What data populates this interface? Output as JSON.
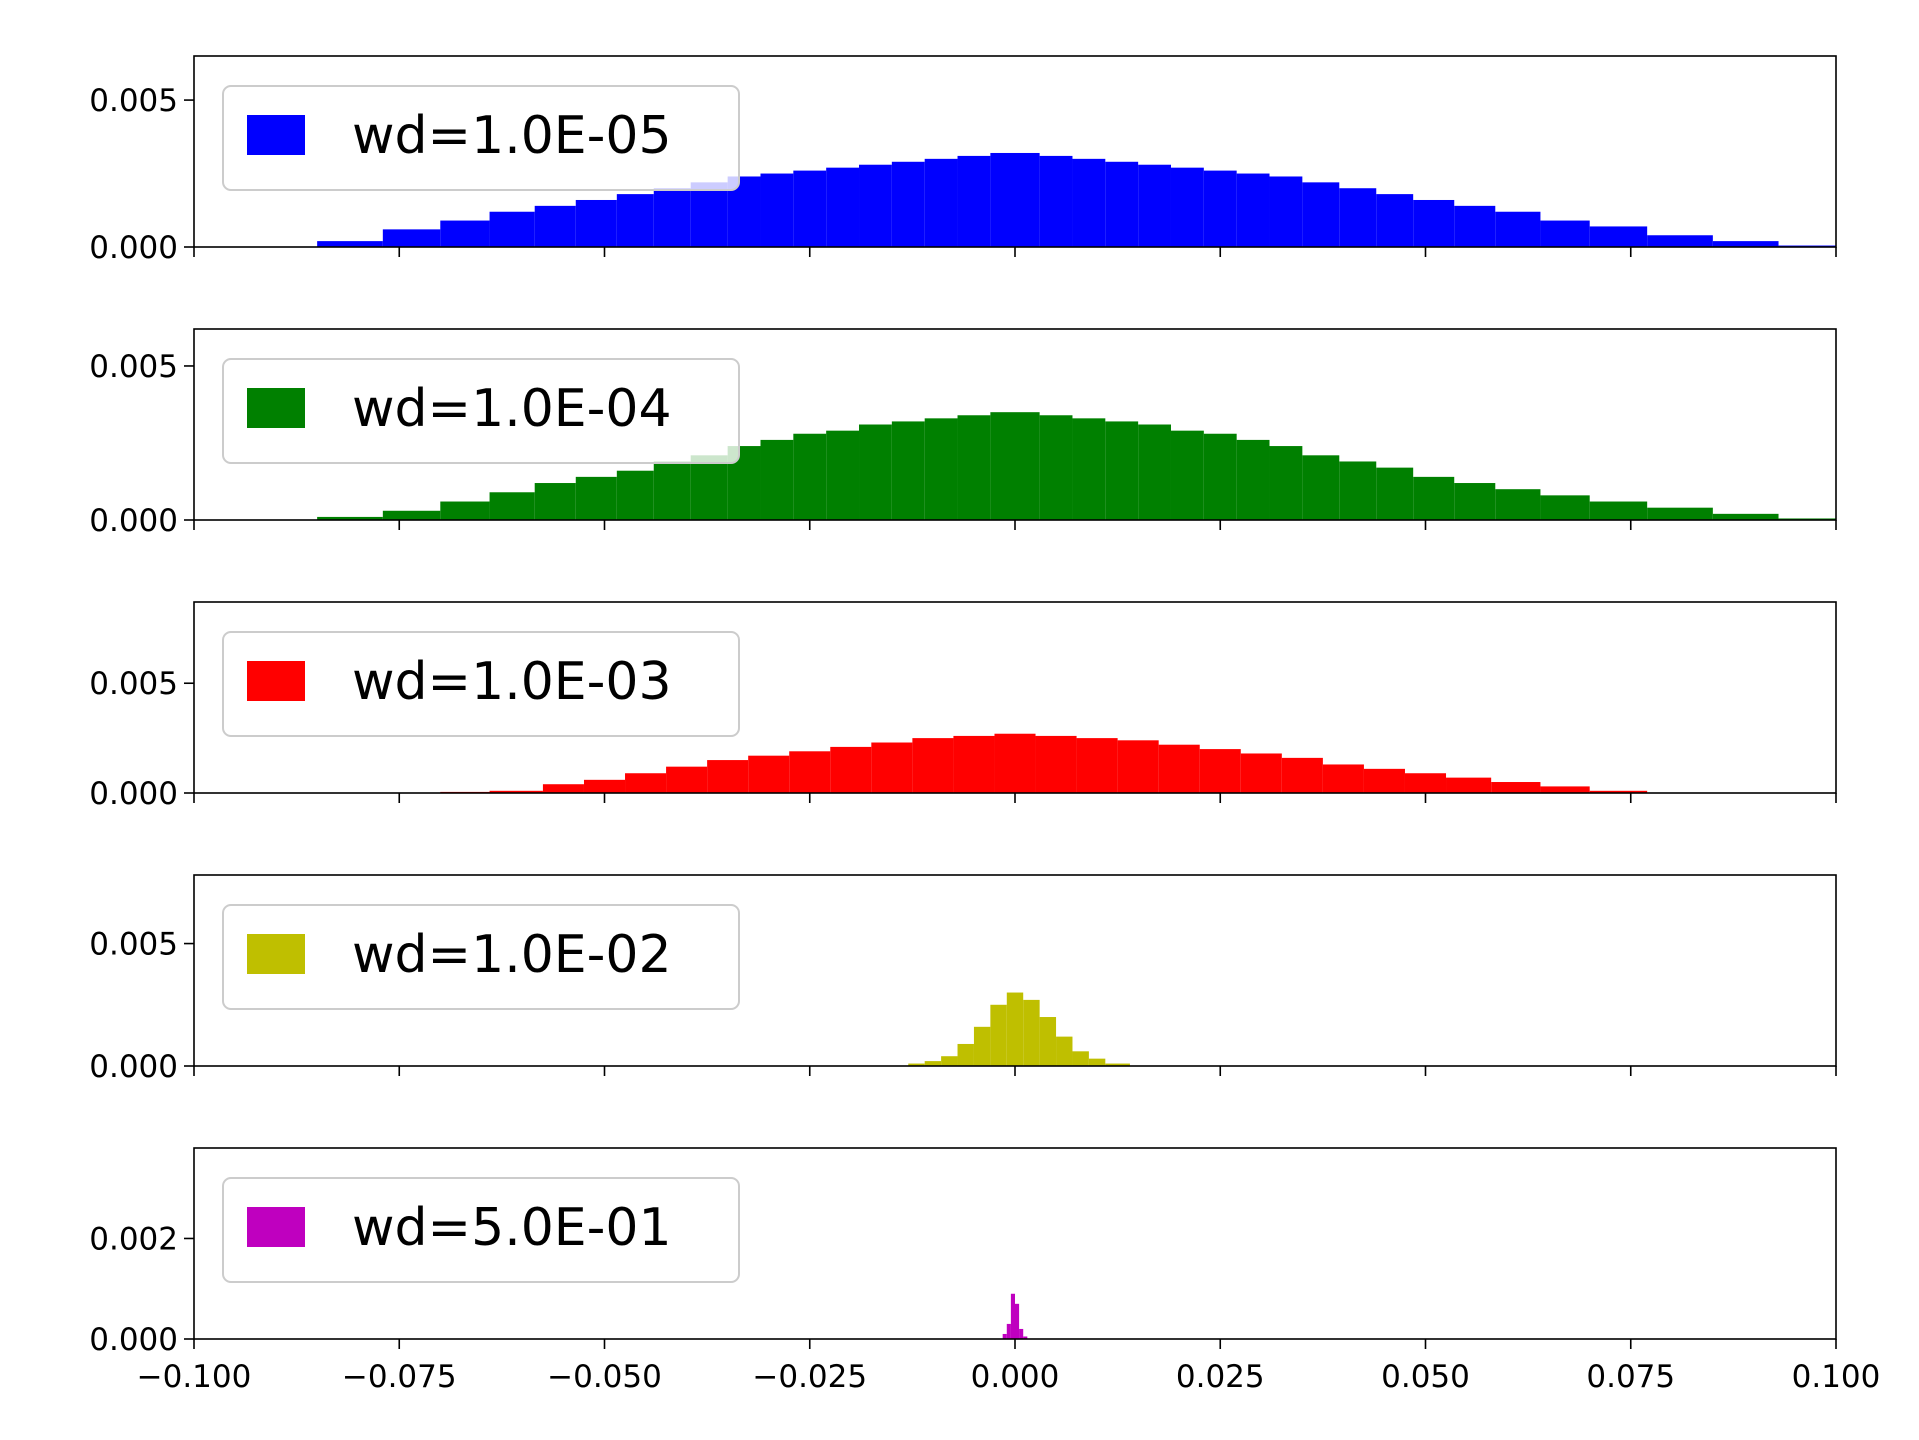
{
  "chart_data": [
    {
      "type": "bar",
      "legend": "wd=1.0E-05",
      "color": "#0000ff",
      "xlim": [
        -0.1,
        0.1
      ],
      "ylim": [
        0,
        0.0065
      ],
      "yticks": [
        0.0,
        0.005
      ],
      "ytick_labels": [
        "0.000",
        "0.005"
      ],
      "xtick_labels": [],
      "bins": [
        {
          "x0": -0.085,
          "x1": -0.077,
          "y": 0.0002
        },
        {
          "x0": -0.077,
          "x1": -0.07,
          "y": 0.0006
        },
        {
          "x0": -0.07,
          "x1": -0.064,
          "y": 0.0009
        },
        {
          "x0": -0.064,
          "x1": -0.0585,
          "y": 0.0012
        },
        {
          "x0": -0.0585,
          "x1": -0.0535,
          "y": 0.0014
        },
        {
          "x0": -0.0535,
          "x1": -0.0485,
          "y": 0.0016
        },
        {
          "x0": -0.0485,
          "x1": -0.044,
          "y": 0.0018
        },
        {
          "x0": -0.044,
          "x1": -0.0395,
          "y": 0.002
        },
        {
          "x0": -0.0395,
          "x1": -0.035,
          "y": 0.0022
        },
        {
          "x0": -0.035,
          "x1": -0.031,
          "y": 0.0024
        },
        {
          "x0": -0.031,
          "x1": -0.027,
          "y": 0.0025
        },
        {
          "x0": -0.027,
          "x1": -0.023,
          "y": 0.0026
        },
        {
          "x0": -0.023,
          "x1": -0.019,
          "y": 0.0027
        },
        {
          "x0": -0.019,
          "x1": -0.015,
          "y": 0.0028
        },
        {
          "x0": -0.015,
          "x1": -0.011,
          "y": 0.0029
        },
        {
          "x0": -0.011,
          "x1": -0.007,
          "y": 0.003
        },
        {
          "x0": -0.007,
          "x1": -0.003,
          "y": 0.0031
        },
        {
          "x0": -0.003,
          "x1": 0.003,
          "y": 0.0032
        },
        {
          "x0": 0.003,
          "x1": 0.007,
          "y": 0.0031
        },
        {
          "x0": 0.007,
          "x1": 0.011,
          "y": 0.003
        },
        {
          "x0": 0.011,
          "x1": 0.015,
          "y": 0.0029
        },
        {
          "x0": 0.015,
          "x1": 0.019,
          "y": 0.0028
        },
        {
          "x0": 0.019,
          "x1": 0.023,
          "y": 0.0027
        },
        {
          "x0": 0.023,
          "x1": 0.027,
          "y": 0.0026
        },
        {
          "x0": 0.027,
          "x1": 0.031,
          "y": 0.0025
        },
        {
          "x0": 0.031,
          "x1": 0.035,
          "y": 0.0024
        },
        {
          "x0": 0.035,
          "x1": 0.0395,
          "y": 0.0022
        },
        {
          "x0": 0.0395,
          "x1": 0.044,
          "y": 0.002
        },
        {
          "x0": 0.044,
          "x1": 0.0485,
          "y": 0.0018
        },
        {
          "x0": 0.0485,
          "x1": 0.0535,
          "y": 0.0016
        },
        {
          "x0": 0.0535,
          "x1": 0.0585,
          "y": 0.0014
        },
        {
          "x0": 0.0585,
          "x1": 0.064,
          "y": 0.0012
        },
        {
          "x0": 0.064,
          "x1": 0.07,
          "y": 0.0009
        },
        {
          "x0": 0.07,
          "x1": 0.077,
          "y": 0.0007
        },
        {
          "x0": 0.077,
          "x1": 0.085,
          "y": 0.0004
        },
        {
          "x0": 0.085,
          "x1": 0.093,
          "y": 0.0002
        },
        {
          "x0": 0.093,
          "x1": 0.1,
          "y": 5e-05
        }
      ]
    },
    {
      "type": "bar",
      "legend": "wd=1.0E-04",
      "color": "#008000",
      "xlim": [
        -0.1,
        0.1
      ],
      "ylim": [
        0,
        0.0062
      ],
      "yticks": [
        0.0,
        0.005
      ],
      "ytick_labels": [
        "0.000",
        "0.005"
      ],
      "xtick_labels": [],
      "bins": [
        {
          "x0": -0.085,
          "x1": -0.077,
          "y": 0.0001
        },
        {
          "x0": -0.077,
          "x1": -0.07,
          "y": 0.0003
        },
        {
          "x0": -0.07,
          "x1": -0.064,
          "y": 0.0006
        },
        {
          "x0": -0.064,
          "x1": -0.0585,
          "y": 0.0009
        },
        {
          "x0": -0.0585,
          "x1": -0.0535,
          "y": 0.0012
        },
        {
          "x0": -0.0535,
          "x1": -0.0485,
          "y": 0.0014
        },
        {
          "x0": -0.0485,
          "x1": -0.044,
          "y": 0.0016
        },
        {
          "x0": -0.044,
          "x1": -0.0395,
          "y": 0.0019
        },
        {
          "x0": -0.0395,
          "x1": -0.035,
          "y": 0.0021
        },
        {
          "x0": -0.035,
          "x1": -0.031,
          "y": 0.0024
        },
        {
          "x0": -0.031,
          "x1": -0.027,
          "y": 0.0026
        },
        {
          "x0": -0.027,
          "x1": -0.023,
          "y": 0.0028
        },
        {
          "x0": -0.023,
          "x1": -0.019,
          "y": 0.0029
        },
        {
          "x0": -0.019,
          "x1": -0.015,
          "y": 0.0031
        },
        {
          "x0": -0.015,
          "x1": -0.011,
          "y": 0.0032
        },
        {
          "x0": -0.011,
          "x1": -0.007,
          "y": 0.0033
        },
        {
          "x0": -0.007,
          "x1": -0.003,
          "y": 0.0034
        },
        {
          "x0": -0.003,
          "x1": 0.003,
          "y": 0.0035
        },
        {
          "x0": 0.003,
          "x1": 0.007,
          "y": 0.0034
        },
        {
          "x0": 0.007,
          "x1": 0.011,
          "y": 0.0033
        },
        {
          "x0": 0.011,
          "x1": 0.015,
          "y": 0.0032
        },
        {
          "x0": 0.015,
          "x1": 0.019,
          "y": 0.0031
        },
        {
          "x0": 0.019,
          "x1": 0.023,
          "y": 0.0029
        },
        {
          "x0": 0.023,
          "x1": 0.027,
          "y": 0.0028
        },
        {
          "x0": 0.027,
          "x1": 0.031,
          "y": 0.0026
        },
        {
          "x0": 0.031,
          "x1": 0.035,
          "y": 0.0024
        },
        {
          "x0": 0.035,
          "x1": 0.0395,
          "y": 0.0021
        },
        {
          "x0": 0.0395,
          "x1": 0.044,
          "y": 0.0019
        },
        {
          "x0": 0.044,
          "x1": 0.0485,
          "y": 0.0017
        },
        {
          "x0": 0.0485,
          "x1": 0.0535,
          "y": 0.0014
        },
        {
          "x0": 0.0535,
          "x1": 0.0585,
          "y": 0.0012
        },
        {
          "x0": 0.0585,
          "x1": 0.064,
          "y": 0.001
        },
        {
          "x0": 0.064,
          "x1": 0.07,
          "y": 0.0008
        },
        {
          "x0": 0.07,
          "x1": 0.077,
          "y": 0.0006
        },
        {
          "x0": 0.077,
          "x1": 0.085,
          "y": 0.0004
        },
        {
          "x0": 0.085,
          "x1": 0.093,
          "y": 0.0002
        },
        {
          "x0": 0.093,
          "x1": 0.1,
          "y": 5e-05
        }
      ]
    },
    {
      "type": "bar",
      "legend": "wd=1.0E-03",
      "color": "#ff0000",
      "xlim": [
        -0.1,
        0.1
      ],
      "ylim": [
        0,
        0.0087
      ],
      "yticks": [
        0.0,
        0.005
      ],
      "ytick_labels": [
        "0.000",
        "0.005"
      ],
      "xtick_labels": [],
      "bins": [
        {
          "x0": -0.07,
          "x1": -0.064,
          "y": 5e-05
        },
        {
          "x0": -0.064,
          "x1": -0.0575,
          "y": 0.0001
        },
        {
          "x0": -0.0575,
          "x1": -0.0525,
          "y": 0.0004
        },
        {
          "x0": -0.0525,
          "x1": -0.0475,
          "y": 0.0006
        },
        {
          "x0": -0.0475,
          "x1": -0.0425,
          "y": 0.0009
        },
        {
          "x0": -0.0425,
          "x1": -0.0375,
          "y": 0.0012
        },
        {
          "x0": -0.0375,
          "x1": -0.0325,
          "y": 0.0015
        },
        {
          "x0": -0.0325,
          "x1": -0.0275,
          "y": 0.0017
        },
        {
          "x0": -0.0275,
          "x1": -0.0225,
          "y": 0.0019
        },
        {
          "x0": -0.0225,
          "x1": -0.0175,
          "y": 0.0021
        },
        {
          "x0": -0.0175,
          "x1": -0.0125,
          "y": 0.0023
        },
        {
          "x0": -0.0125,
          "x1": -0.0075,
          "y": 0.0025
        },
        {
          "x0": -0.0075,
          "x1": -0.0025,
          "y": 0.0026
        },
        {
          "x0": -0.0025,
          "x1": 0.0025,
          "y": 0.0027
        },
        {
          "x0": 0.0025,
          "x1": 0.0075,
          "y": 0.0026
        },
        {
          "x0": 0.0075,
          "x1": 0.0125,
          "y": 0.0025
        },
        {
          "x0": 0.0125,
          "x1": 0.0175,
          "y": 0.0024
        },
        {
          "x0": 0.0175,
          "x1": 0.0225,
          "y": 0.0022
        },
        {
          "x0": 0.0225,
          "x1": 0.0275,
          "y": 0.002
        },
        {
          "x0": 0.0275,
          "x1": 0.0325,
          "y": 0.0018
        },
        {
          "x0": 0.0325,
          "x1": 0.0375,
          "y": 0.0016
        },
        {
          "x0": 0.0375,
          "x1": 0.0425,
          "y": 0.0013
        },
        {
          "x0": 0.0425,
          "x1": 0.0475,
          "y": 0.0011
        },
        {
          "x0": 0.0475,
          "x1": 0.0525,
          "y": 0.0009
        },
        {
          "x0": 0.0525,
          "x1": 0.058,
          "y": 0.0007
        },
        {
          "x0": 0.058,
          "x1": 0.064,
          "y": 0.0005
        },
        {
          "x0": 0.064,
          "x1": 0.07,
          "y": 0.0003
        },
        {
          "x0": 0.07,
          "x1": 0.077,
          "y": 0.0001
        }
      ]
    },
    {
      "type": "bar",
      "legend": "wd=1.0E-02",
      "color": "#bfbf00",
      "xlim": [
        -0.1,
        0.1
      ],
      "ylim": [
        0,
        0.0078
      ],
      "yticks": [
        0.0,
        0.005
      ],
      "ytick_labels": [
        "0.000",
        "0.005"
      ],
      "xtick_labels": [],
      "bins": [
        {
          "x0": -0.013,
          "x1": -0.011,
          "y": 0.0001
        },
        {
          "x0": -0.011,
          "x1": -0.009,
          "y": 0.0002
        },
        {
          "x0": -0.009,
          "x1": -0.007,
          "y": 0.0004
        },
        {
          "x0": -0.007,
          "x1": -0.005,
          "y": 0.0009
        },
        {
          "x0": -0.005,
          "x1": -0.003,
          "y": 0.0016
        },
        {
          "x0": -0.003,
          "x1": -0.001,
          "y": 0.0025
        },
        {
          "x0": -0.001,
          "x1": 0.001,
          "y": 0.003
        },
        {
          "x0": 0.001,
          "x1": 0.003,
          "y": 0.0027
        },
        {
          "x0": 0.003,
          "x1": 0.005,
          "y": 0.002
        },
        {
          "x0": 0.005,
          "x1": 0.007,
          "y": 0.0012
        },
        {
          "x0": 0.007,
          "x1": 0.009,
          "y": 0.0006
        },
        {
          "x0": 0.009,
          "x1": 0.011,
          "y": 0.0003
        },
        {
          "x0": 0.011,
          "x1": 0.014,
          "y": 0.0001
        }
      ]
    },
    {
      "type": "bar",
      "legend": "wd=5.0E-01",
      "color": "#bf00bf",
      "xlim": [
        -0.1,
        0.1
      ],
      "ylim": [
        0,
        0.0038
      ],
      "yticks": [
        0.0,
        0.002
      ],
      "ytick_labels": [
        "0.000",
        "0.002"
      ],
      "xtick_labels": [
        "−0.100",
        "−0.075",
        "−0.050",
        "−0.025",
        "0.000",
        "0.025",
        "0.050",
        "0.075",
        "0.100"
      ],
      "bins": [
        {
          "x0": -0.0015,
          "x1": -0.001,
          "y": 0.0001
        },
        {
          "x0": -0.001,
          "x1": -0.0005,
          "y": 0.0003
        },
        {
          "x0": -0.0005,
          "x1": 0.0,
          "y": 0.0009
        },
        {
          "x0": 0.0,
          "x1": 0.0005,
          "y": 0.0007
        },
        {
          "x0": 0.0005,
          "x1": 0.001,
          "y": 0.0002
        },
        {
          "x0": 0.001,
          "x1": 0.0015,
          "y": 5e-05
        }
      ]
    }
  ]
}
